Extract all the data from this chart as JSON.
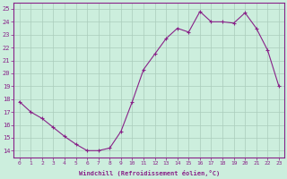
{
  "hours": [
    0,
    1,
    2,
    3,
    4,
    5,
    6,
    7,
    8,
    9,
    10,
    11,
    12,
    13,
    14,
    15,
    16,
    17,
    18,
    19,
    20,
    21,
    22,
    23
  ],
  "temps": [
    17.8,
    17.0,
    16.5,
    15.8,
    15.1,
    14.5,
    14.0,
    14.0,
    14.2,
    15.5,
    17.8,
    20.3,
    21.5,
    22.7,
    23.5,
    23.2,
    24.8,
    24.0,
    24.0,
    23.9,
    24.7,
    23.5,
    21.8,
    19.0
  ],
  "line_color": "#882288",
  "marker_color": "#882288",
  "bg_color": "#cceedd",
  "grid_color": "#aaccbb",
  "xlabel": "Windchill (Refroidissement éolien,°C)",
  "ylabel_ticks": [
    14,
    15,
    16,
    17,
    18,
    19,
    20,
    21,
    22,
    23,
    24,
    25
  ],
  "xlim": [
    -0.5,
    23.5
  ],
  "ylim": [
    13.5,
    25.5
  ],
  "xtick_labels": [
    "0",
    "1",
    "2",
    "3",
    "4",
    "5",
    "6",
    "7",
    "8",
    "9",
    "10",
    "11",
    "12",
    "13",
    "14",
    "15",
    "16",
    "17",
    "18",
    "19",
    "20",
    "21",
    "22",
    "23"
  ],
  "axis_label_color": "#882288",
  "tick_color": "#882288"
}
